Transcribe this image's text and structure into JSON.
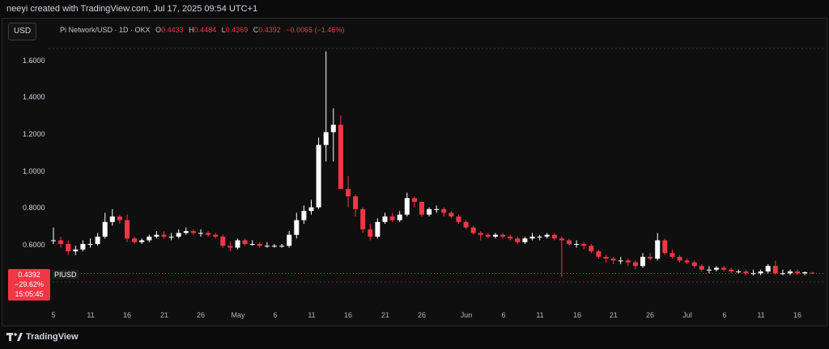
{
  "header": {
    "credit": "neeyi created with TradingView.com, Jul 17, 2025 09:54 UTC+1"
  },
  "toolbar": {
    "currency_label": "USD"
  },
  "legend": {
    "symbol": "Pi Network/USD · 1D · OKX",
    "open_label": "O",
    "open": "0.4433",
    "high_label": "H",
    "high": "0.4484",
    "low_label": "L",
    "low": "0.4369",
    "close_label": "C",
    "close": "0.4392",
    "change": "−0.0065 (−1.46%)"
  },
  "price_axis": {
    "ticks": [
      "1.6000",
      "1.4000",
      "1.2000",
      "1.0000",
      "0.8000",
      "0.6000"
    ]
  },
  "last_price": {
    "price": "0.4392",
    "change_pct": "−29.62%",
    "countdown": "15:05:45",
    "symbol": "PIUSD"
  },
  "time_axis": {
    "ticks": [
      "5",
      "11",
      "16",
      "21",
      "26",
      "May",
      "6",
      "11",
      "16",
      "21",
      "26",
      "Jun",
      "6",
      "11",
      "16",
      "21",
      "26",
      "Jul",
      "6",
      "11",
      "16"
    ]
  },
  "footer": {
    "brand": "TradingView"
  },
  "colors": {
    "up": "#ffffff",
    "down": "#f23645",
    "background": "#0f0f0f"
  },
  "chart_data": {
    "type": "candlestick",
    "interval": "1D",
    "ylim": [
      0.38,
      1.7
    ],
    "x": [
      "Apr 5",
      "Apr 6",
      "Apr 7",
      "Apr 8",
      "Apr 9",
      "Apr 10",
      "Apr 11",
      "Apr 12",
      "Apr 13",
      "Apr 14",
      "Apr 15",
      "Apr 16",
      "Apr 17",
      "Apr 18",
      "Apr 19",
      "Apr 20",
      "Apr 21",
      "Apr 22",
      "Apr 23",
      "Apr 24",
      "Apr 25",
      "Apr 26",
      "Apr 27",
      "Apr 28",
      "Apr 29",
      "Apr 30",
      "May 1",
      "May 2",
      "May 3",
      "May 4",
      "May 5",
      "May 6",
      "May 7",
      "May 8",
      "May 9",
      "May 10",
      "May 11",
      "May 12",
      "May 13",
      "May 14",
      "May 15",
      "May 16",
      "May 17",
      "May 18",
      "May 19",
      "May 20",
      "May 21",
      "May 22",
      "May 23",
      "May 24",
      "May 25",
      "May 26",
      "May 27",
      "May 28",
      "May 29",
      "May 30",
      "May 31",
      "Jun 1",
      "Jun 2",
      "Jun 3",
      "Jun 4",
      "Jun 5",
      "Jun 6",
      "Jun 7",
      "Jun 8",
      "Jun 9",
      "Jun 10",
      "Jun 11",
      "Jun 12",
      "Jun 13",
      "Jun 14",
      "Jun 15",
      "Jun 16",
      "Jun 17",
      "Jun 18",
      "Jun 19",
      "Jun 20",
      "Jun 21",
      "Jun 22",
      "Jun 23",
      "Jun 24",
      "Jun 25",
      "Jun 26",
      "Jun 27",
      "Jun 28",
      "Jun 29",
      "Jun 30",
      "Jul 1",
      "Jul 2",
      "Jul 3",
      "Jul 4",
      "Jul 5",
      "Jul 6",
      "Jul 7",
      "Jul 8",
      "Jul 9",
      "Jul 10",
      "Jul 11",
      "Jul 12",
      "Jul 13",
      "Jul 14",
      "Jul 15",
      "Jul 16",
      "Jul 17"
    ],
    "close": [
      0.62,
      0.6,
      0.56,
      0.57,
      0.6,
      0.6,
      0.64,
      0.72,
      0.75,
      0.73,
      0.63,
      0.61,
      0.62,
      0.64,
      0.65,
      0.64,
      0.64,
      0.66,
      0.67,
      0.66,
      0.66,
      0.65,
      0.64,
      0.59,
      0.58,
      0.62,
      0.6,
      0.6,
      0.59,
      0.59,
      0.59,
      0.59,
      0.65,
      0.73,
      0.78,
      0.8,
      1.14,
      1.21,
      1.25,
      0.9,
      0.86,
      0.79,
      0.68,
      0.64,
      0.72,
      0.75,
      0.73,
      0.76,
      0.85,
      0.83,
      0.76,
      0.79,
      0.79,
      0.77,
      0.75,
      0.72,
      0.69,
      0.66,
      0.65,
      0.64,
      0.65,
      0.64,
      0.63,
      0.61,
      0.63,
      0.64,
      0.64,
      0.65,
      0.63,
      0.62,
      0.6,
      0.6,
      0.59,
      0.56,
      0.53,
      0.52,
      0.51,
      0.51,
      0.5,
      0.48,
      0.53,
      0.52,
      0.62,
      0.55,
      0.53,
      0.51,
      0.5,
      0.48,
      0.46,
      0.46,
      0.47,
      0.46,
      0.45,
      0.45,
      0.44,
      0.44,
      0.45,
      0.48,
      0.44,
      0.44,
      0.45,
      0.44,
      0.4457,
      0.4392
    ],
    "open": [
      0.62,
      0.62,
      0.6,
      0.56,
      0.57,
      0.6,
      0.6,
      0.64,
      0.72,
      0.75,
      0.73,
      0.63,
      0.61,
      0.62,
      0.64,
      0.65,
      0.64,
      0.64,
      0.66,
      0.67,
      0.66,
      0.66,
      0.65,
      0.64,
      0.59,
      0.58,
      0.62,
      0.6,
      0.6,
      0.59,
      0.59,
      0.59,
      0.59,
      0.65,
      0.73,
      0.78,
      0.8,
      1.14,
      1.21,
      1.25,
      0.9,
      0.86,
      0.79,
      0.68,
      0.64,
      0.72,
      0.75,
      0.73,
      0.76,
      0.85,
      0.83,
      0.76,
      0.79,
      0.79,
      0.77,
      0.75,
      0.72,
      0.69,
      0.66,
      0.65,
      0.64,
      0.65,
      0.64,
      0.63,
      0.61,
      0.63,
      0.64,
      0.64,
      0.65,
      0.63,
      0.62,
      0.6,
      0.6,
      0.59,
      0.56,
      0.53,
      0.52,
      0.51,
      0.51,
      0.5,
      0.48,
      0.53,
      0.52,
      0.62,
      0.55,
      0.53,
      0.51,
      0.5,
      0.48,
      0.46,
      0.46,
      0.47,
      0.46,
      0.45,
      0.45,
      0.44,
      0.44,
      0.45,
      0.48,
      0.44,
      0.44,
      0.45,
      0.44,
      0.4433
    ],
    "high": [
      0.69,
      0.64,
      0.62,
      0.59,
      0.62,
      0.63,
      0.66,
      0.77,
      0.79,
      0.76,
      0.76,
      0.64,
      0.63,
      0.65,
      0.67,
      0.67,
      0.66,
      0.68,
      0.69,
      0.68,
      0.68,
      0.67,
      0.66,
      0.65,
      0.61,
      0.63,
      0.63,
      0.62,
      0.61,
      0.61,
      0.6,
      0.6,
      0.67,
      0.77,
      0.81,
      0.84,
      1.18,
      1.65,
      1.34,
      1.3,
      0.97,
      0.87,
      0.8,
      0.71,
      0.74,
      0.77,
      0.77,
      0.78,
      0.88,
      0.86,
      0.83,
      0.8,
      0.81,
      0.8,
      0.78,
      0.76,
      0.73,
      0.7,
      0.67,
      0.66,
      0.66,
      0.66,
      0.65,
      0.64,
      0.64,
      0.66,
      0.65,
      0.66,
      0.66,
      0.64,
      0.63,
      0.62,
      0.61,
      0.6,
      0.57,
      0.54,
      0.53,
      0.53,
      0.52,
      0.51,
      0.55,
      0.55,
      0.66,
      0.63,
      0.57,
      0.54,
      0.52,
      0.51,
      0.49,
      0.48,
      0.48,
      0.48,
      0.47,
      0.46,
      0.46,
      0.46,
      0.46,
      0.49,
      0.51,
      0.46,
      0.46,
      0.46,
      0.45,
      0.4484
    ],
    "low": [
      0.6,
      0.58,
      0.54,
      0.54,
      0.56,
      0.58,
      0.59,
      0.63,
      0.7,
      0.71,
      0.61,
      0.6,
      0.6,
      0.61,
      0.63,
      0.63,
      0.62,
      0.63,
      0.65,
      0.65,
      0.64,
      0.64,
      0.63,
      0.58,
      0.56,
      0.57,
      0.59,
      0.59,
      0.58,
      0.58,
      0.58,
      0.58,
      0.58,
      0.63,
      0.71,
      0.76,
      0.79,
      1.05,
      1.05,
      0.9,
      0.8,
      0.75,
      0.66,
      0.62,
      0.63,
      0.71,
      0.72,
      0.72,
      0.75,
      0.8,
      0.75,
      0.75,
      0.77,
      0.75,
      0.74,
      0.71,
      0.68,
      0.65,
      0.62,
      0.63,
      0.63,
      0.63,
      0.62,
      0.6,
      0.6,
      0.62,
      0.62,
      0.63,
      0.62,
      0.42,
      0.59,
      0.58,
      0.57,
      0.55,
      0.52,
      0.5,
      0.49,
      0.49,
      0.48,
      0.46,
      0.47,
      0.51,
      0.51,
      0.54,
      0.52,
      0.5,
      0.49,
      0.47,
      0.45,
      0.44,
      0.45,
      0.45,
      0.44,
      0.44,
      0.43,
      0.43,
      0.43,
      0.44,
      0.43,
      0.43,
      0.43,
      0.43,
      0.43,
      0.4369
    ]
  }
}
